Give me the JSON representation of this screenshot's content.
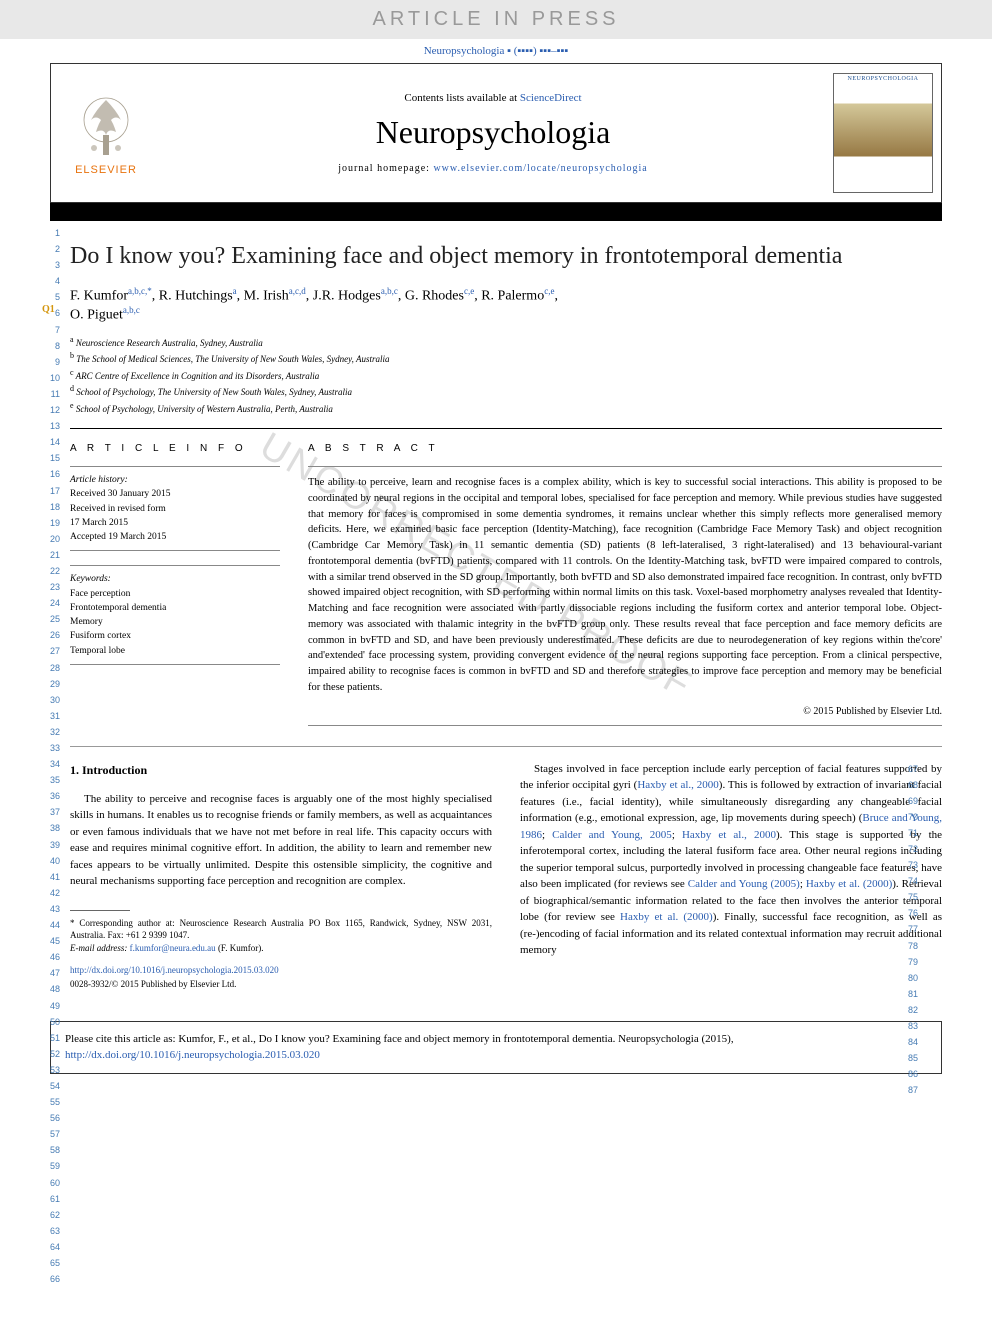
{
  "banner": "ARTICLE IN PRESS",
  "top_citation": "Neuropsychologia ▪ (▪▪▪▪) ▪▪▪–▪▪▪",
  "header": {
    "sd_text": "Contents lists available at ",
    "sd_link": "ScienceDirect",
    "journal": "Neuropsychologia",
    "homepage_label": "journal homepage: ",
    "homepage_url": "www.elsevier.com/locate/neuropsychologia",
    "elsevier_brand": "ELSEVIER",
    "cover_title": "NEUROPSYCHOLOGIA"
  },
  "article": {
    "title": "Do I know you? Examining face and object memory in frontotemporal dementia",
    "q1": "Q1",
    "authors_line1": "F. Kumfor",
    "authors_sup1": "a,b,c,*",
    "authors_line1b": ", R. Hutchings",
    "authors_sup2": "a",
    "authors_line1c": ", M. Irish",
    "authors_sup3": "a,c,d",
    "authors_line1d": ", J.R. Hodges",
    "authors_sup4": "a,b,c",
    "authors_line1e": ", G. Rhodes",
    "authors_sup5": "c,e",
    "authors_line1f": ", R. Palermo",
    "authors_sup6": "c,e",
    "authors_line1g": ",",
    "authors_line2": "O. Piguet",
    "authors_sup7": "a,b,c"
  },
  "affiliations": {
    "a": "Neuroscience Research Australia, Sydney, Australia",
    "b": "The School of Medical Sciences, The University of New South Wales, Sydney, Australia",
    "c": "ARC Centre of Excellence in Cognition and its Disorders, Australia",
    "d": "School of Psychology, The University of New South Wales, Sydney, Australia",
    "e": "School of Psychology, University of Western Australia, Perth, Australia"
  },
  "article_info": {
    "heading": "a r t i c l e   i n f o",
    "history_label": "Article history:",
    "received": "Received 30 January 2015",
    "revised": "Received in revised form",
    "revised_date": "17 March 2015",
    "accepted": "Accepted 19 March 2015",
    "keywords_label": "Keywords:",
    "kw1": "Face perception",
    "kw2": "Frontotemporal dementia",
    "kw3": "Memory",
    "kw4": "Fusiform cortex",
    "kw5": "Temporal lobe"
  },
  "abstract": {
    "heading": "a b s t r a c t",
    "text": "The ability to perceive, learn and recognise faces is a complex ability, which is key to successful social interactions. This ability is proposed to be coordinated by neural regions in the occipital and temporal lobes, specialised for face perception and memory. While previous studies have suggested that memory for faces is compromised in some dementia syndromes, it remains unclear whether this simply reflects more generalised memory deficits. Here, we examined basic face perception (Identity-Matching), face recognition (Cambridge Face Memory Task) and object recognition (Cambridge Car Memory Task) in 11 semantic dementia (SD) patients (8 left-lateralised, 3 right-lateralised) and 13 behavioural-variant frontotemporal dementia (bvFTD) patients, compared with 11 controls. On the Identity-Matching task, bvFTD were impaired compared to controls, with a similar trend observed in the SD group. Importantly, both bvFTD and SD also demonstrated impaired face recognition. In contrast, only bvFTD showed impaired object recognition, with SD performing within normal limits on this task. Voxel-based morphometry analyses revealed that Identity-Matching and face recognition were associated with partly dissociable regions including the fusiform cortex and anterior temporal lobe. Object-memory was associated with thalamic integrity in the bvFTD group only. These results reveal that face perception and face memory deficits are common in bvFTD and SD, and have been previously underestimated. These deficits are due to neurodegeneration of key regions within the'core' and'extended' face processing system, providing convergent evidence of the neural regions supporting face perception. From a clinical perspective, impaired ability to recognise faces is common in bvFTD and SD and therefore strategies to improve face perception and memory may be beneficial for these patients.",
    "copyright": "© 2015 Published by Elsevier Ltd."
  },
  "body": {
    "intro_heading": "1.  Introduction",
    "para1": "The ability to perceive and recognise faces is arguably one of the most highly specialised skills in humans. It enables us to recognise friends or family members, as well as acquaintances or even famous individuals that we have not met before in real life. This capacity occurs with ease and requires minimal cognitive effort. In addition, the ability to learn and remember new faces appears to be virtually unlimited. Despite this ostensible simplicity, the cognitive and neural mechanisms supporting face perception and recognition are complex.",
    "para2_a": "Stages involved in face perception include early perception of facial features supported by the inferior occipital gyri (",
    "ref1": "Haxby et al., 2000",
    "para2_b": "). This is followed by extraction of invariant facial features (i.e., facial identity), while simultaneously disregarding any changeable facial information (e.g., emotional expression, age, lip movements during speech) (",
    "ref2": "Bruce and Young, 1986",
    "para2_c": "; ",
    "ref3": "Calder and Young, 2005",
    "para2_d": "; ",
    "ref4": "Haxby et al., 2000",
    "para2_e": "). This stage is supported by the inferotemporal cortex, including the lateral fusiform face area. Other neural regions including the superior temporal sulcus, purportedly involved in processing changeable face features, have also been implicated (for reviews see ",
    "ref5": "Calder and Young (2005)",
    "para2_f": "; ",
    "ref6": "Haxby et al. (2000)",
    "para2_g": "). Retrieval of biographical/semantic information related to the face then involves the anterior temporal lobe (for review see ",
    "ref7": "Haxby et al. (2000)",
    "para2_h": "). Finally, successful face recognition, as well as (re-)encoding of facial information and its related contextual information may recruit additional memory"
  },
  "footnotes": {
    "corr": "* Corresponding author at: Neuroscience Research Australia PO Box 1165, Randwick, Sydney, NSW 2031, Australia. Fax: +61 2 9399 1047.",
    "email_label": "E-mail address: ",
    "email": "f.kumfor@neura.edu.au",
    "email_suffix": " (F. Kumfor)."
  },
  "doi": {
    "link": "http://dx.doi.org/10.1016/j.neuropsychologia.2015.03.020",
    "issn": "0028-3932/© 2015 Published by Elsevier Ltd."
  },
  "watermark": "UNCORRECTED PROOF",
  "cite_box": {
    "text": "Please cite this article as: Kumfor, F., et al., Do I know you? Examining face and object memory in frontotemporal dementia. Neuropsychologia (2015), ",
    "link": "http://dx.doi.org/10.1016/j.neuropsychologia.2015.03.020"
  },
  "line_ranges": {
    "left_start": 1,
    "left_end": 66,
    "right_start": 67,
    "right_end": 87
  },
  "colors": {
    "link": "#2a5db0",
    "banner_bg": "#e8e8e8",
    "banner_fg": "#999",
    "q1": "#d4960e",
    "line_num": "#467bb3",
    "elsevier": "#e8730e",
    "watermark": "#ddd"
  }
}
